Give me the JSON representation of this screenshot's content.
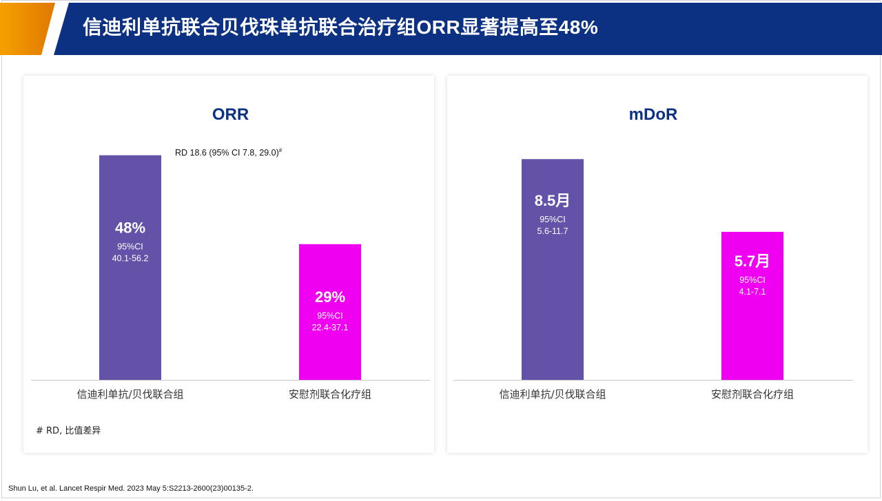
{
  "header": {
    "title": "信迪利单抗联合贝伐珠单抗联合治疗组ORR显著提高至48%",
    "colors": {
      "navy": "#0d3182",
      "orange": "#f08c00"
    }
  },
  "footnote": "# RD, 比值差异",
  "citation": "Shun Lu, et al. Lancet Respir Med. 2023 May 5:S2213-2600(23)00135-2.",
  "annotation": {
    "text": "RD 18.6 (95% CI 7.8, 29.0)",
    "sup": "#"
  },
  "chart_data": [
    {
      "type": "bar",
      "title": "ORR",
      "categories": [
        "信迪利单抗/贝伐联合组",
        "安慰剂联合化疗组"
      ],
      "values": [
        48,
        29
      ],
      "value_labels": [
        "48%",
        "29%"
      ],
      "ci_label": "95%CI",
      "ci_values": [
        "40.1-56.2",
        "22.4-37.1"
      ],
      "colors": [
        "#6352a8",
        "#f000f0"
      ],
      "ylim": [
        0,
        50
      ],
      "grid": false
    },
    {
      "type": "bar",
      "title": "mDoR",
      "categories": [
        "信迪利单抗/贝伐联合组",
        "安慰剂联合化疗组"
      ],
      "values": [
        8.5,
        5.7
      ],
      "value_labels": [
        "8.5月",
        "5.7月"
      ],
      "ci_label": "95%CI",
      "ci_values": [
        "5.6-11.7",
        "4.1-7.1"
      ],
      "colors": [
        "#6352a8",
        "#f000f0"
      ],
      "ylim": [
        0,
        8.85
      ],
      "grid": false
    }
  ]
}
